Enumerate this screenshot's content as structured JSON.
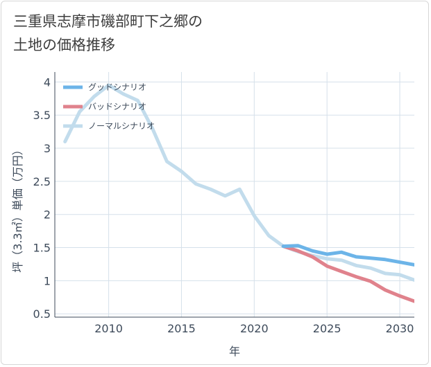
{
  "title_line1": "三重県志摩市磯部町下之郷の",
  "title_line2": "土地の価格推移",
  "chart_data": {
    "type": "line",
    "xlabel": "年",
    "ylabel": "坪（3.3㎡）単価（万円）",
    "xlim": [
      2006.3,
      2031
    ],
    "ylim": [
      0.45,
      4.15
    ],
    "xticks": [
      2010,
      2015,
      2020,
      2025,
      2030
    ],
    "yticks": [
      0.5,
      1,
      1.5,
      2,
      2.5,
      3,
      3.5,
      4
    ],
    "grid": true,
    "legend_position": "top-left",
    "series": [
      {
        "name": "グッドシナリオ",
        "color": "#6cb4e8",
        "x": [
          2022,
          2023,
          2024,
          2025,
          2026,
          2027,
          2028,
          2029,
          2030,
          2031
        ],
        "y": [
          1.52,
          1.53,
          1.45,
          1.4,
          1.43,
          1.36,
          1.34,
          1.32,
          1.28,
          1.24
        ]
      },
      {
        "name": "バッドシナリオ",
        "color": "#e0828c",
        "x": [
          2022,
          2023,
          2024,
          2025,
          2026,
          2027,
          2028,
          2029,
          2030,
          2031
        ],
        "y": [
          1.52,
          1.45,
          1.36,
          1.22,
          1.14,
          1.06,
          0.99,
          0.86,
          0.77,
          0.69
        ]
      },
      {
        "name": "ノーマルシナリオ",
        "color": "#c2dcec",
        "x": [
          2007,
          2008,
          2009,
          2010,
          2011,
          2012,
          2013,
          2014,
          2015,
          2016,
          2017,
          2018,
          2019,
          2020,
          2021,
          2022,
          2023,
          2024,
          2025,
          2026,
          2027,
          2028,
          2029,
          2030,
          2031
        ],
        "y": [
          3.1,
          3.55,
          3.78,
          3.95,
          3.82,
          3.72,
          3.3,
          2.8,
          2.65,
          2.46,
          2.38,
          2.28,
          2.38,
          1.98,
          1.68,
          1.52,
          1.44,
          1.38,
          1.33,
          1.31,
          1.23,
          1.19,
          1.11,
          1.09,
          1.01
        ]
      }
    ]
  }
}
